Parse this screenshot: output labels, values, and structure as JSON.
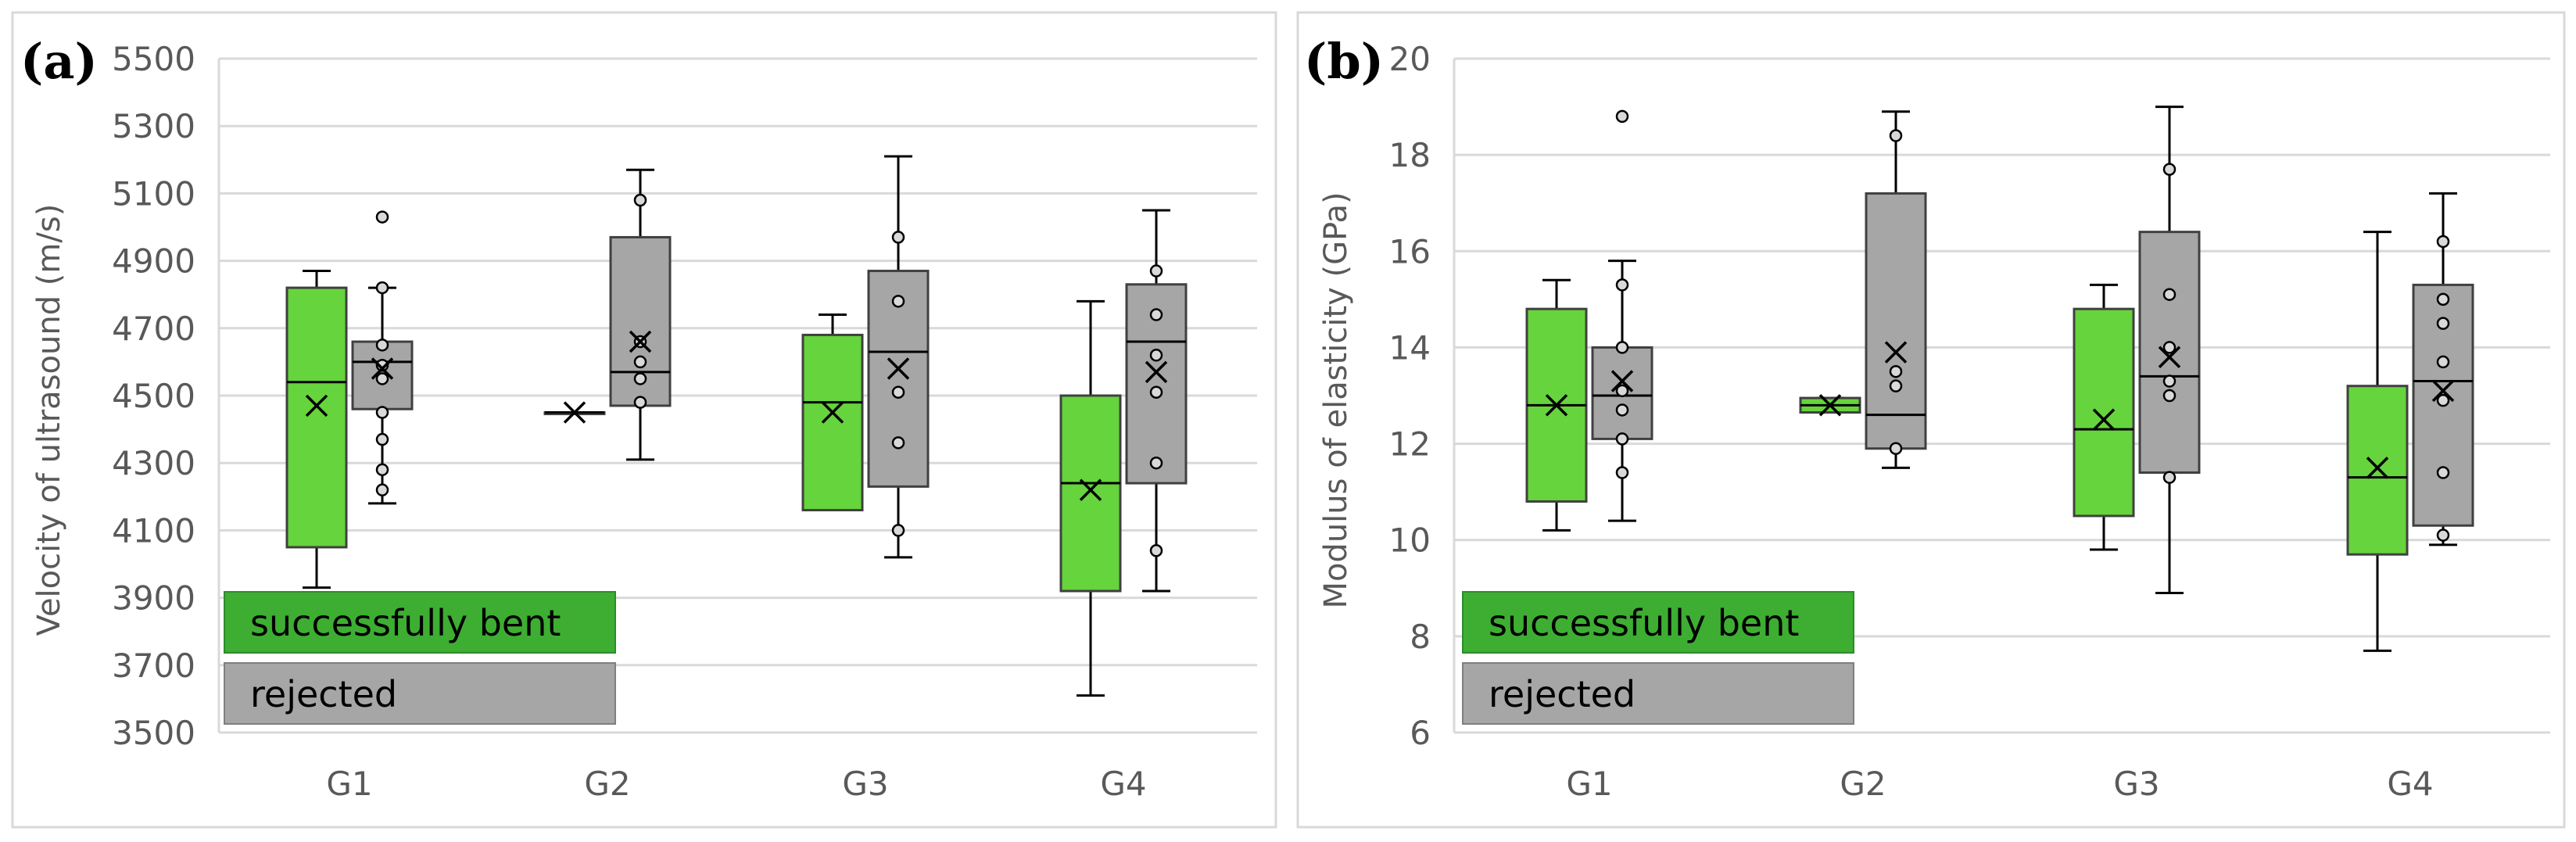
{
  "chart_data": [
    {
      "type": "box",
      "panel_label": "(a)",
      "title": "",
      "xlabel": "",
      "ylabel": "Velocity of ultrasound (m/s)",
      "ylim": [
        3500,
        5500
      ],
      "yticks": [
        "3500",
        "3700",
        "3900",
        "4100",
        "4300",
        "4500",
        "4700",
        "4900",
        "5100",
        "5300",
        "5500"
      ],
      "categories": [
        "G1",
        "G2",
        "G3",
        "G4"
      ],
      "legend": [
        "successfully bent",
        "rejected"
      ],
      "grid": true,
      "series": [
        {
          "name": "successfully bent",
          "color": "#66D43C",
          "boxes": [
            {
              "min": 3930,
              "q1": 4050,
              "median": 4540,
              "q3": 4820,
              "max": 4870,
              "mean": 4470,
              "points": []
            },
            {
              "min": 4450,
              "q1": 4450,
              "median": 4450,
              "q3": 4450,
              "max": 4450,
              "mean": 4450,
              "points": []
            },
            {
              "min": 4160,
              "q1": 4160,
              "median": 4480,
              "q3": 4680,
              "max": 4740,
              "mean": 4450,
              "points": []
            },
            {
              "min": 3610,
              "q1": 3920,
              "median": 4240,
              "q3": 4500,
              "max": 4780,
              "mean": 4220,
              "points": []
            }
          ]
        },
        {
          "name": "rejected",
          "color": "#A6A6A6",
          "boxes": [
            {
              "min": 4180,
              "q1": 4460,
              "median": 4600,
              "q3": 4660,
              "max": 4820,
              "mean": 4580,
              "points": [
                5030,
                4820,
                4650,
                4590,
                4550,
                4450,
                4370,
                4280,
                4220
              ]
            },
            {
              "min": 4310,
              "q1": 4470,
              "median": 4570,
              "q3": 4970,
              "max": 5170,
              "mean": 4660,
              "points": [
                5080,
                4660,
                4600,
                4550,
                4480
              ]
            },
            {
              "min": 4020,
              "q1": 4230,
              "median": 4630,
              "q3": 4870,
              "max": 5210,
              "mean": 4580,
              "points": [
                4970,
                4780,
                4510,
                4360,
                4100
              ]
            },
            {
              "min": 3920,
              "q1": 4240,
              "median": 4660,
              "q3": 4830,
              "max": 5050,
              "mean": 4570,
              "points": [
                4870,
                4740,
                4620,
                4510,
                4300,
                4040
              ]
            }
          ]
        }
      ]
    },
    {
      "type": "box",
      "panel_label": "(b)",
      "title": "",
      "xlabel": "",
      "ylabel": "Modulus of elasticity (GPa)",
      "ylim": [
        6,
        20
      ],
      "yticks": [
        "6",
        "8",
        "10",
        "12",
        "14",
        "16",
        "18",
        "20"
      ],
      "categories": [
        "G1",
        "G2",
        "G3",
        "G4"
      ],
      "legend": [
        "successfully bent",
        "rejected"
      ],
      "grid": true,
      "series": [
        {
          "name": "successfully bent",
          "color": "#66D43C",
          "boxes": [
            {
              "min": 10.2,
              "q1": 10.8,
              "median": 12.8,
              "q3": 14.8,
              "max": 15.4,
              "mean": 12.8,
              "points": []
            },
            {
              "min": 12.65,
              "q1": 12.65,
              "median": 12.8,
              "q3": 12.95,
              "max": 12.95,
              "mean": 12.8,
              "points": []
            },
            {
              "min": 9.8,
              "q1": 10.5,
              "median": 12.3,
              "q3": 14.8,
              "max": 15.3,
              "mean": 12.5,
              "points": []
            },
            {
              "min": 7.7,
              "q1": 9.7,
              "median": 11.3,
              "q3": 13.2,
              "max": 16.4,
              "mean": 11.5,
              "points": []
            }
          ]
        },
        {
          "name": "rejected",
          "color": "#A6A6A6",
          "boxes": [
            {
              "min": 10.4,
              "q1": 12.1,
              "median": 13.0,
              "q3": 14.0,
              "max": 15.8,
              "mean": 13.3,
              "points": [
                18.8,
                15.3,
                14.0,
                13.1,
                12.7,
                12.1,
                11.4
              ]
            },
            {
              "min": 11.5,
              "q1": 11.9,
              "median": 12.6,
              "q3": 17.2,
              "max": 18.9,
              "mean": 13.9,
              "points": [
                18.4,
                13.5,
                13.2,
                11.9
              ]
            },
            {
              "min": 8.9,
              "q1": 11.4,
              "median": 13.4,
              "q3": 16.4,
              "max": 19.0,
              "mean": 13.8,
              "points": [
                17.7,
                15.1,
                14.0,
                13.3,
                13.0,
                11.3
              ]
            },
            {
              "min": 9.9,
              "q1": 10.3,
              "median": 13.3,
              "q3": 15.3,
              "max": 17.2,
              "mean": 13.1,
              "points": [
                16.2,
                15.0,
                14.5,
                13.7,
                12.9,
                11.4,
                10.1
              ]
            }
          ]
        }
      ]
    }
  ]
}
